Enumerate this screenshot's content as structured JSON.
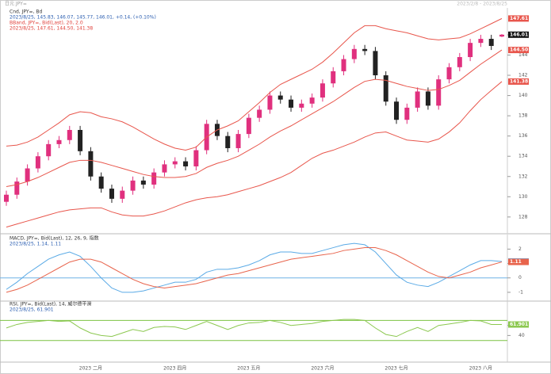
{
  "header": {
    "title": "日元 JPY=",
    "range": "2023/2/8 - 2023/8/25"
  },
  "chart_data": [
    {
      "type": "candlestick",
      "legend": [
        "Cnd, JPY=, Bd",
        "2023/8/25, 145.83, 146.07, 145.77, 146.01, +0.14, (+0.10%)",
        "BBand, JPY=, Bid(Last), 20, 2.0",
        "2023/8/25, 147.61, 144.50, 141.38"
      ],
      "categories": [
        null,
        null,
        null,
        null,
        null,
        null,
        null,
        null,
        "2023 二月",
        null,
        null,
        null,
        null,
        null,
        null,
        null,
        "2023 四月",
        null,
        null,
        null,
        null,
        null,
        null,
        "2023 五月",
        null,
        null,
        null,
        null,
        null,
        null,
        "2023 六月",
        null,
        null,
        null,
        null,
        null,
        null,
        "2023 七月",
        null,
        null,
        null,
        null,
        null,
        null,
        null,
        "2023 八月",
        null,
        null
      ],
      "open": [
        129.5,
        130.2,
        131.5,
        132.8,
        134.0,
        135.2,
        135.6,
        136.6,
        134.5,
        132.0,
        130.8,
        129.8,
        130.6,
        131.6,
        131.2,
        132.4,
        133.2,
        133.5,
        133.0,
        134.6,
        137.2,
        136.0,
        134.8,
        136.2,
        137.8,
        138.6,
        140.0,
        139.6,
        138.8,
        139.2,
        139.8,
        141.2,
        142.4,
        143.6,
        144.6,
        144.4,
        142.0,
        139.4,
        137.6,
        138.8,
        140.4,
        139.0,
        141.6,
        142.8,
        143.8,
        145.2,
        145.6,
        145.83
      ],
      "high": [
        130.6,
        131.9,
        133.2,
        134.4,
        135.6,
        136.0,
        137.0,
        137.0,
        134.9,
        132.4,
        131.2,
        131.0,
        132.0,
        132.0,
        132.8,
        133.6,
        133.9,
        133.9,
        135.0,
        137.6,
        137.6,
        136.4,
        136.6,
        138.2,
        139.0,
        140.4,
        140.4,
        140.0,
        139.6,
        140.2,
        141.6,
        142.8,
        144.0,
        145.0,
        145.0,
        144.8,
        142.4,
        139.8,
        139.2,
        140.8,
        140.8,
        142.0,
        143.2,
        144.2,
        145.6,
        146.0,
        146.0,
        146.07
      ],
      "low": [
        129.1,
        129.8,
        131.1,
        132.4,
        133.6,
        134.8,
        135.2,
        134.1,
        131.6,
        130.4,
        129.4,
        129.4,
        130.2,
        130.8,
        130.8,
        132.0,
        132.8,
        132.6,
        132.6,
        134.2,
        135.6,
        134.4,
        134.4,
        135.8,
        137.4,
        138.2,
        139.2,
        138.4,
        138.4,
        138.8,
        139.4,
        140.8,
        142.0,
        143.2,
        144.0,
        141.6,
        139.0,
        137.2,
        137.2,
        138.4,
        138.6,
        138.6,
        141.2,
        142.4,
        143.4,
        144.8,
        144.5,
        145.77
      ],
      "close": [
        130.2,
        131.5,
        132.8,
        134.0,
        135.2,
        135.6,
        136.6,
        134.5,
        132.0,
        130.8,
        129.8,
        130.6,
        131.6,
        131.2,
        132.4,
        133.2,
        133.5,
        133.0,
        134.6,
        137.2,
        136.0,
        134.8,
        136.2,
        137.8,
        138.6,
        140.0,
        139.6,
        138.8,
        139.2,
        139.8,
        141.2,
        142.4,
        143.6,
        144.6,
        144.4,
        142.0,
        139.4,
        137.6,
        138.8,
        140.4,
        139.0,
        141.6,
        142.8,
        143.8,
        145.2,
        145.6,
        144.9,
        146.01
      ],
      "up_color": "#e0307e",
      "down_color": "#222222",
      "series": [
        {
          "color": "#e8564c",
          "values": [
            135.0,
            135.1,
            135.4,
            135.9,
            136.6,
            137.3,
            138.1,
            138.4,
            138.3,
            137.9,
            137.7,
            137.4,
            136.9,
            136.3,
            135.7,
            135.2,
            134.8,
            134.6,
            134.9,
            135.9,
            136.6,
            137.0,
            137.5,
            138.4,
            139.3,
            140.3,
            141.1,
            141.6,
            142.1,
            142.6,
            143.3,
            144.2,
            145.2,
            146.2,
            146.9,
            146.9,
            146.6,
            146.4,
            146.2,
            145.9,
            145.6,
            145.5,
            145.6,
            145.7,
            146.1,
            146.6,
            147.1,
            147.61
          ]
        },
        {
          "color": "#e8564c",
          "last_label": "144.50",
          "values": [
            131.0,
            131.2,
            131.5,
            131.9,
            132.4,
            132.9,
            133.4,
            133.6,
            133.6,
            133.4,
            133.1,
            132.8,
            132.5,
            132.2,
            132.0,
            131.9,
            131.9,
            132.0,
            132.3,
            132.9,
            133.3,
            133.6,
            134.0,
            134.6,
            135.2,
            135.9,
            136.5,
            137.0,
            137.6,
            138.2,
            138.8,
            139.4,
            140.1,
            140.8,
            141.4,
            141.6,
            141.5,
            141.2,
            140.9,
            140.7,
            140.5,
            140.6,
            141.0,
            141.5,
            142.3,
            143.1,
            143.8,
            144.5
          ]
        },
        {
          "color": "#e8564c",
          "values": [
            127.0,
            127.3,
            127.6,
            127.9,
            128.2,
            128.5,
            128.7,
            128.8,
            128.9,
            128.9,
            128.5,
            128.2,
            128.1,
            128.1,
            128.3,
            128.6,
            129.0,
            129.4,
            129.7,
            129.9,
            130.0,
            130.2,
            130.5,
            130.8,
            131.1,
            131.5,
            131.9,
            132.4,
            133.1,
            133.8,
            134.3,
            134.6,
            135.0,
            135.4,
            135.9,
            136.3,
            136.4,
            136.0,
            135.6,
            135.5,
            135.4,
            135.7,
            136.4,
            137.3,
            138.5,
            139.6,
            140.5,
            141.38
          ]
        }
      ],
      "ylim": [
        126.5,
        148.5
      ],
      "yticks": [
        128,
        130,
        132,
        134,
        136,
        138,
        140,
        142,
        144,
        146
      ]
    },
    {
      "type": "line",
      "legend": [
        "MACD, JPY=, Bid(Last), 12, 26, 9, 指数",
        "2023/8/25, 1.14, 1.11"
      ],
      "levels": [
        0
      ],
      "level_color": "#6fb2e6",
      "series": [
        {
          "color": "#5aaae6",
          "values": [
            -0.8,
            -0.3,
            0.3,
            0.8,
            1.3,
            1.6,
            1.8,
            1.5,
            0.8,
            0.0,
            -0.7,
            -1.0,
            -1.0,
            -0.9,
            -0.7,
            -0.5,
            -0.3,
            -0.3,
            -0.1,
            0.4,
            0.6,
            0.6,
            0.7,
            0.9,
            1.2,
            1.6,
            1.8,
            1.8,
            1.7,
            1.7,
            1.9,
            2.1,
            2.3,
            2.4,
            2.3,
            1.8,
            1.0,
            0.2,
            -0.3,
            -0.5,
            -0.6,
            -0.3,
            0.1,
            0.5,
            0.9,
            1.2,
            1.2,
            1.14
          ]
        },
        {
          "color": "#e8644c",
          "values": [
            -1.0,
            -0.8,
            -0.5,
            -0.1,
            0.3,
            0.7,
            1.1,
            1.3,
            1.3,
            1.1,
            0.7,
            0.3,
            -0.1,
            -0.4,
            -0.6,
            -0.7,
            -0.6,
            -0.5,
            -0.4,
            -0.2,
            0.0,
            0.2,
            0.3,
            0.5,
            0.7,
            0.9,
            1.1,
            1.3,
            1.4,
            1.5,
            1.6,
            1.7,
            1.9,
            2.0,
            2.1,
            2.1,
            1.9,
            1.6,
            1.2,
            0.8,
            0.4,
            0.1,
            0.0,
            0.2,
            0.4,
            0.7,
            0.9,
            1.11
          ]
        }
      ],
      "ylim": [
        -1.5,
        2.9
      ],
      "yticks": [
        -1,
        0,
        1,
        2
      ]
    },
    {
      "type": "line",
      "legend": [
        "RSI, JPY=, Bid(Last), 14, 威尔德平滑",
        "2023/8/25, 61.901"
      ],
      "levels": [
        30,
        70
      ],
      "level_color": "#7cc242",
      "series": [
        {
          "color": "#8cc850",
          "values": [
            55,
            62,
            66,
            68,
            70,
            68,
            69,
            55,
            45,
            40,
            38,
            45,
            52,
            48,
            56,
            58,
            57,
            52,
            60,
            68,
            60,
            52,
            60,
            65,
            66,
            70,
            66,
            60,
            62,
            64,
            68,
            70,
            72,
            72,
            70,
            55,
            42,
            38,
            48,
            56,
            48,
            60,
            63,
            66,
            70,
            69,
            62,
            61.901
          ]
        }
      ],
      "ylim": [
        -10,
        107
      ],
      "yticks": [
        40,
        60
      ]
    }
  ]
}
